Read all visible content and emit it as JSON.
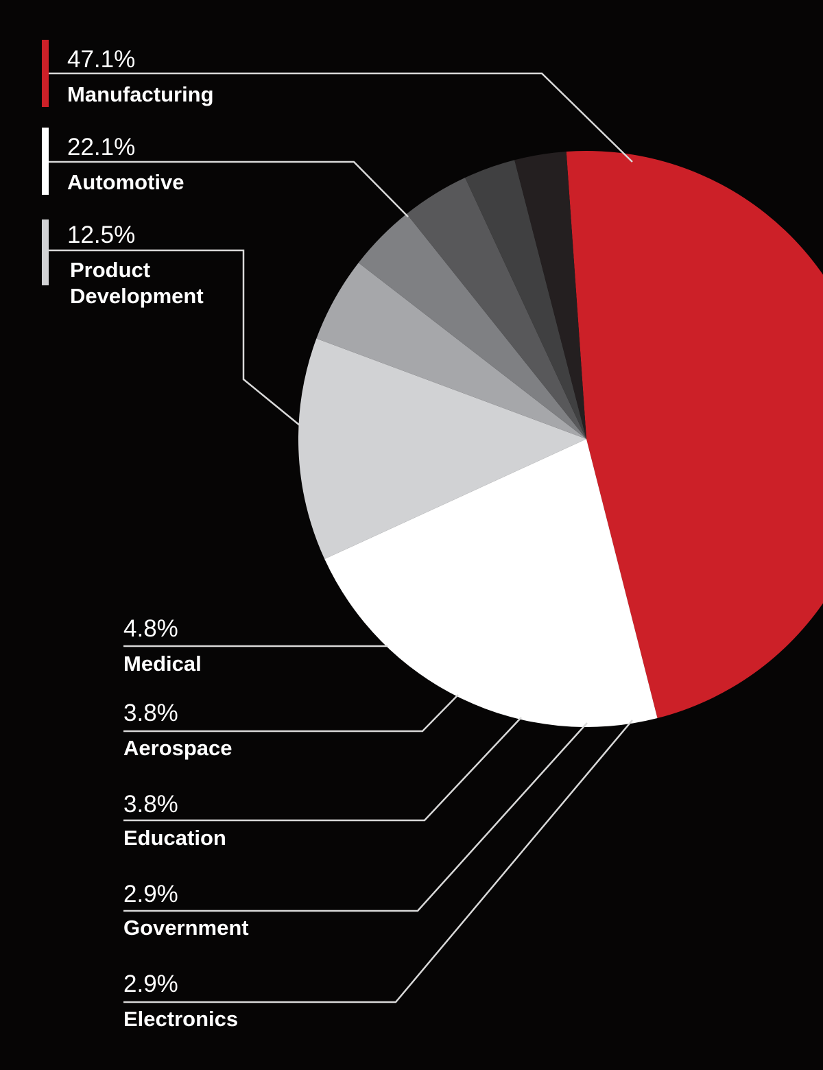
{
  "chart_data": {
    "type": "pie",
    "title": "",
    "unit": "%",
    "categories": [
      "Manufacturing",
      "Automotive",
      "Product Development",
      "Medical",
      "Aerospace",
      "Education",
      "Government",
      "Electronics"
    ],
    "values": [
      47.1,
      22.1,
      12.5,
      4.8,
      3.8,
      3.8,
      2.9,
      2.9
    ],
    "value_labels": [
      "47.1%",
      "22.1%",
      "12.5%",
      "4.8%",
      "3.8%",
      "3.8%",
      "2.9%",
      "2.9%"
    ],
    "label_lines": [
      [
        "Manufacturing"
      ],
      [
        "Automotive"
      ],
      [
        "Product",
        "Development"
      ],
      [
        "Medical"
      ],
      [
        "Aerospace"
      ],
      [
        "Education"
      ],
      [
        "Government"
      ],
      [
        "Electronics"
      ]
    ],
    "colors": [
      "#cc2028",
      "#ffffff",
      "#d1d2d4",
      "#a6a7aa",
      "#7f8083",
      "#58585a",
      "#404041",
      "#241f20"
    ],
    "start_angle_deg": -4,
    "direction": "clockwise",
    "legend": "callout labels on the left"
  }
}
